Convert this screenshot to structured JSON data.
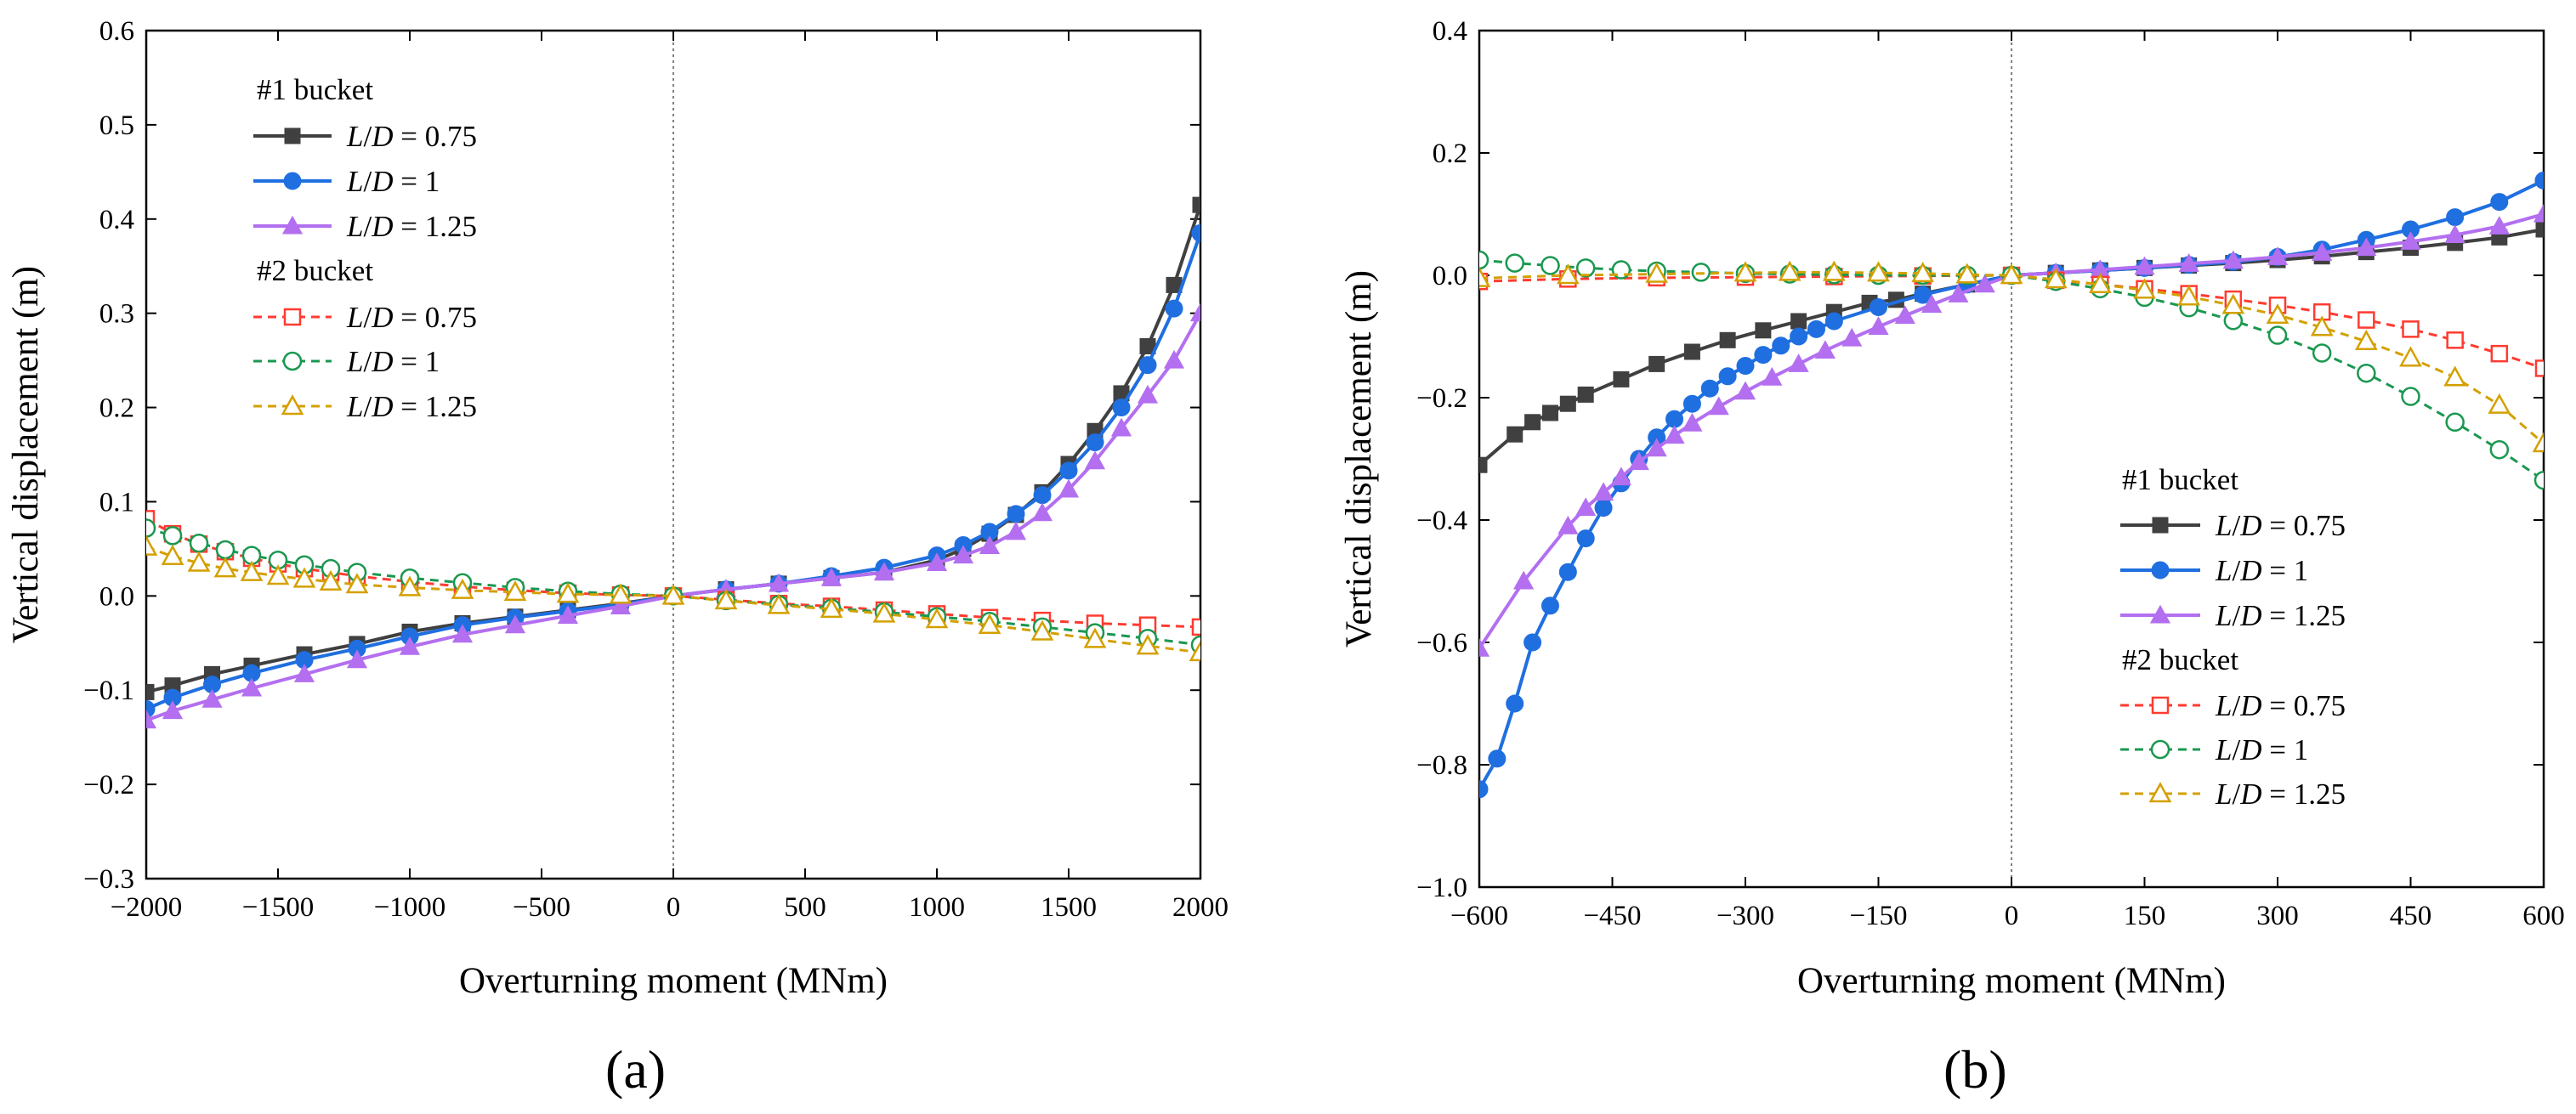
{
  "chart_data": [
    {
      "type": "line",
      "panel_label": "(a)",
      "xlabel": "Overturning moment (MNm)",
      "ylabel": "Vertical displacement (m)",
      "xlim": [
        -2000,
        2000
      ],
      "ylim": [
        -0.3,
        0.6
      ],
      "xticks": [
        -2000,
        -1500,
        -1000,
        -500,
        0,
        500,
        1000,
        1500,
        2000
      ],
      "yticks": [
        -0.3,
        -0.2,
        -0.1,
        0.0,
        0.1,
        0.2,
        0.3,
        0.4,
        0.5,
        0.6
      ],
      "xtick_labels": [
        "−2000",
        "−1500",
        "−1000",
        "−500",
        "0",
        "500",
        "1000",
        "1500",
        "2000"
      ],
      "ytick_labels": [
        "−0.3",
        "−0.2",
        "−0.1",
        "0.0",
        "0.1",
        "0.2",
        "0.3",
        "0.4",
        "0.5",
        "0.6"
      ],
      "grid": false,
      "zero_line": true,
      "legend_position": "upper-left",
      "legend_groups": [
        "#1 bucket",
        "#2 bucket"
      ],
      "series": [
        {
          "group": "#1 bucket",
          "ld": "0.75",
          "color": "#404040",
          "line": "solid",
          "marker": "square-filled",
          "x": [
            -2000,
            -1900,
            -1750,
            -1600,
            -1400,
            -1200,
            -1000,
            -800,
            -600,
            -400,
            -200,
            0,
            200,
            400,
            600,
            800,
            1000,
            1100,
            1200,
            1300,
            1400,
            1500,
            1600,
            1700,
            1800,
            1900,
            2000
          ],
          "y": [
            -0.102,
            -0.095,
            -0.083,
            -0.074,
            -0.062,
            -0.051,
            -0.038,
            -0.029,
            -0.022,
            -0.015,
            -0.008,
            0,
            0.007,
            0.013,
            0.019,
            0.025,
            0.038,
            0.05,
            0.066,
            0.086,
            0.11,
            0.14,
            0.175,
            0.215,
            0.265,
            0.33,
            0.415
          ]
        },
        {
          "group": "#1 bucket",
          "ld": "1",
          "color": "#1f6fe0",
          "line": "solid",
          "marker": "circle-filled",
          "x": [
            -2000,
            -1900,
            -1750,
            -1600,
            -1400,
            -1200,
            -1000,
            -800,
            -600,
            -400,
            -200,
            0,
            200,
            400,
            600,
            800,
            1000,
            1100,
            1200,
            1300,
            1400,
            1500,
            1600,
            1700,
            1800,
            1900,
            2000
          ],
          "y": [
            -0.12,
            -0.108,
            -0.094,
            -0.082,
            -0.068,
            -0.056,
            -0.043,
            -0.031,
            -0.023,
            -0.016,
            -0.009,
            0,
            0.007,
            0.013,
            0.021,
            0.03,
            0.043,
            0.054,
            0.068,
            0.087,
            0.107,
            0.133,
            0.163,
            0.2,
            0.245,
            0.305,
            0.385
          ]
        },
        {
          "group": "#1 bucket",
          "ld": "1.25",
          "color": "#b36ff0",
          "line": "solid",
          "marker": "triangle-filled",
          "x": [
            -2000,
            -1900,
            -1750,
            -1600,
            -1400,
            -1200,
            -1000,
            -800,
            -600,
            -400,
            -200,
            0,
            200,
            400,
            600,
            800,
            1000,
            1100,
            1200,
            1300,
            1400,
            1500,
            1600,
            1700,
            1800,
            1900,
            2000
          ],
          "y": [
            -0.132,
            -0.122,
            -0.11,
            -0.098,
            -0.083,
            -0.068,
            -0.054,
            -0.041,
            -0.031,
            -0.021,
            -0.011,
            0,
            0.007,
            0.013,
            0.019,
            0.025,
            0.035,
            0.043,
            0.053,
            0.068,
            0.088,
            0.113,
            0.143,
            0.178,
            0.213,
            0.25,
            0.3
          ]
        },
        {
          "group": "#2 bucket",
          "ld": "0.75",
          "color": "#ff3b30",
          "line": "dashed",
          "marker": "square-open",
          "x": [
            -2000,
            -1900,
            -1800,
            -1700,
            -1600,
            -1500,
            -1400,
            -1300,
            -1200,
            -1000,
            -800,
            -600,
            -400,
            -200,
            0,
            200,
            400,
            600,
            800,
            1000,
            1200,
            1400,
            1600,
            1800,
            2000
          ],
          "y": [
            0.082,
            0.066,
            0.055,
            0.047,
            0.04,
            0.034,
            0.029,
            0.025,
            0.021,
            0.015,
            0.01,
            0.006,
            0.003,
            0.001,
            0,
            -0.004,
            -0.008,
            -0.011,
            -0.015,
            -0.019,
            -0.023,
            -0.026,
            -0.029,
            -0.031,
            -0.033
          ]
        },
        {
          "group": "#2 bucket",
          "ld": "1",
          "color": "#1a9850",
          "line": "dashed",
          "marker": "circle-open",
          "x": [
            -2000,
            -1900,
            -1800,
            -1700,
            -1600,
            -1500,
            -1400,
            -1300,
            -1200,
            -1000,
            -800,
            -600,
            -400,
            -200,
            0,
            200,
            400,
            600,
            800,
            1000,
            1200,
            1400,
            1600,
            1800,
            2000
          ],
          "y": [
            0.072,
            0.064,
            0.056,
            0.049,
            0.043,
            0.038,
            0.033,
            0.029,
            0.025,
            0.019,
            0.014,
            0.009,
            0.005,
            0.002,
            0,
            -0.005,
            -0.009,
            -0.013,
            -0.017,
            -0.022,
            -0.027,
            -0.033,
            -0.039,
            -0.045,
            -0.052
          ]
        },
        {
          "group": "#2 bucket",
          "ld": "1.25",
          "color": "#d4a000",
          "line": "dashed",
          "marker": "triangle-open",
          "x": [
            -2000,
            -1900,
            -1800,
            -1700,
            -1600,
            -1500,
            -1400,
            -1300,
            -1200,
            -1000,
            -800,
            -600,
            -400,
            -200,
            0,
            200,
            400,
            600,
            800,
            1000,
            1200,
            1400,
            1600,
            1800,
            2000
          ],
          "y": [
            0.052,
            0.042,
            0.035,
            0.029,
            0.025,
            0.021,
            0.018,
            0.015,
            0.012,
            0.009,
            0.006,
            0.004,
            0.002,
            0.001,
            0,
            -0.005,
            -0.01,
            -0.014,
            -0.019,
            -0.025,
            -0.031,
            -0.038,
            -0.046,
            -0.053,
            -0.06
          ]
        }
      ]
    },
    {
      "type": "line",
      "panel_label": "(b)",
      "xlabel": "Overturning moment (MNm)",
      "ylabel": "Vertical displacement (m)",
      "xlim": [
        -600,
        600
      ],
      "ylim": [
        -1.0,
        0.4
      ],
      "xticks": [
        -600,
        -450,
        -300,
        -150,
        0,
        150,
        300,
        450,
        600
      ],
      "yticks": [
        -1.0,
        -0.8,
        -0.6,
        -0.4,
        -0.2,
        0.0,
        0.2,
        0.4
      ],
      "xtick_labels": [
        "−600",
        "−450",
        "−300",
        "−150",
        "0",
        "150",
        "300",
        "450",
        "600"
      ],
      "ytick_labels": [
        "−1.0",
        "−0.8",
        "−0.6",
        "−0.4",
        "−0.2",
        "0.0",
        "0.2",
        "0.4"
      ],
      "grid": false,
      "zero_line": true,
      "legend_position": "lower-right",
      "legend_groups": [
        "#1 bucket",
        "#2 bucket"
      ],
      "series": [
        {
          "group": "#1 bucket",
          "ld": "0.75",
          "color": "#404040",
          "line": "solid",
          "marker": "square-filled",
          "x": [
            -600,
            -560,
            -540,
            -520,
            -500,
            -480,
            -440,
            -400,
            -360,
            -320,
            -280,
            -240,
            -200,
            -160,
            -130,
            -100,
            -50,
            0,
            50,
            100,
            150,
            200,
            250,
            300,
            350,
            400,
            450,
            500,
            550,
            600
          ],
          "y": [
            -0.31,
            -0.26,
            -0.24,
            -0.225,
            -0.21,
            -0.195,
            -0.17,
            -0.145,
            -0.125,
            -0.106,
            -0.09,
            -0.075,
            -0.06,
            -0.045,
            -0.04,
            -0.03,
            -0.015,
            0,
            0.004,
            0.008,
            0.012,
            0.016,
            0.02,
            0.025,
            0.031,
            0.038,
            0.045,
            0.053,
            0.062,
            0.075
          ]
        },
        {
          "group": "#1 bucket",
          "ld": "1",
          "color": "#1f6fe0",
          "line": "solid",
          "marker": "circle-filled",
          "x": [
            -600,
            -580,
            -560,
            -540,
            -520,
            -500,
            -480,
            -460,
            -440,
            -420,
            -400,
            -380,
            -360,
            -340,
            -320,
            -300,
            -280,
            -260,
            -240,
            -220,
            -200,
            -150,
            -100,
            -50,
            0,
            50,
            100,
            150,
            200,
            250,
            300,
            350,
            400,
            450,
            500,
            550,
            600
          ],
          "y": [
            -0.84,
            -0.79,
            -0.7,
            -0.6,
            -0.54,
            -0.485,
            -0.43,
            -0.38,
            -0.34,
            -0.3,
            -0.265,
            -0.235,
            -0.21,
            -0.185,
            -0.165,
            -0.148,
            -0.13,
            -0.115,
            -0.1,
            -0.088,
            -0.075,
            -0.052,
            -0.032,
            -0.015,
            0,
            0.004,
            0.008,
            0.012,
            0.017,
            0.022,
            0.03,
            0.042,
            0.058,
            0.075,
            0.095,
            0.12,
            0.155
          ]
        },
        {
          "group": "#1 bucket",
          "ld": "1.25",
          "color": "#b36ff0",
          "line": "solid",
          "marker": "triangle-filled",
          "x": [
            -600,
            -550,
            -500,
            -480,
            -460,
            -440,
            -420,
            -400,
            -380,
            -360,
            -330,
            -300,
            -270,
            -240,
            -210,
            -180,
            -150,
            -120,
            -90,
            -60,
            -30,
            0,
            50,
            100,
            150,
            200,
            250,
            300,
            350,
            400,
            450,
            500,
            550,
            600
          ],
          "y": [
            -0.61,
            -0.5,
            -0.41,
            -0.38,
            -0.355,
            -0.33,
            -0.305,
            -0.283,
            -0.262,
            -0.242,
            -0.215,
            -0.19,
            -0.167,
            -0.145,
            -0.123,
            -0.103,
            -0.084,
            -0.066,
            -0.048,
            -0.031,
            -0.015,
            0,
            0.004,
            0.009,
            0.014,
            0.019,
            0.024,
            0.03,
            0.037,
            0.045,
            0.055,
            0.066,
            0.08,
            0.1
          ]
        },
        {
          "group": "#2 bucket",
          "ld": "0.75",
          "color": "#ff3b30",
          "line": "dashed",
          "marker": "square-open",
          "x": [
            -600,
            -500,
            -400,
            -300,
            -200,
            -100,
            0,
            50,
            100,
            150,
            200,
            250,
            300,
            350,
            400,
            450,
            500,
            550,
            600
          ],
          "y": [
            -0.01,
            -0.006,
            -0.004,
            -0.003,
            -0.002,
            -0.001,
            0,
            -0.008,
            -0.015,
            -0.022,
            -0.03,
            -0.039,
            -0.049,
            -0.06,
            -0.073,
            -0.088,
            -0.106,
            -0.128,
            -0.152
          ]
        },
        {
          "group": "#2 bucket",
          "ld": "1",
          "color": "#1a9850",
          "line": "dashed",
          "marker": "circle-open",
          "x": [
            -600,
            -560,
            -520,
            -480,
            -440,
            -400,
            -350,
            -300,
            -250,
            -200,
            -150,
            -100,
            -50,
            0,
            50,
            100,
            150,
            200,
            250,
            300,
            350,
            400,
            450,
            500,
            550,
            600
          ],
          "y": [
            0.025,
            0.02,
            0.016,
            0.012,
            0.009,
            0.007,
            0.005,
            0.003,
            0.002,
            0.001,
            0.0,
            0.0,
            0.0,
            0,
            -0.01,
            -0.022,
            -0.036,
            -0.053,
            -0.074,
            -0.098,
            -0.127,
            -0.16,
            -0.198,
            -0.24,
            -0.285,
            -0.335
          ]
        },
        {
          "group": "#2 bucket",
          "ld": "1.25",
          "color": "#d4a000",
          "line": "dashed",
          "marker": "triangle-open",
          "x": [
            -600,
            -500,
            -400,
            -300,
            -250,
            -200,
            -150,
            -100,
            -50,
            0,
            50,
            100,
            150,
            200,
            250,
            300,
            350,
            400,
            450,
            500,
            550,
            600
          ],
          "y": [
            -0.005,
            0.0,
            0.002,
            0.004,
            0.005,
            0.005,
            0.004,
            0.003,
            0.001,
            0,
            -0.007,
            -0.015,
            -0.024,
            -0.035,
            -0.049,
            -0.065,
            -0.085,
            -0.108,
            -0.135,
            -0.167,
            -0.212,
            -0.275
          ]
        }
      ]
    }
  ]
}
